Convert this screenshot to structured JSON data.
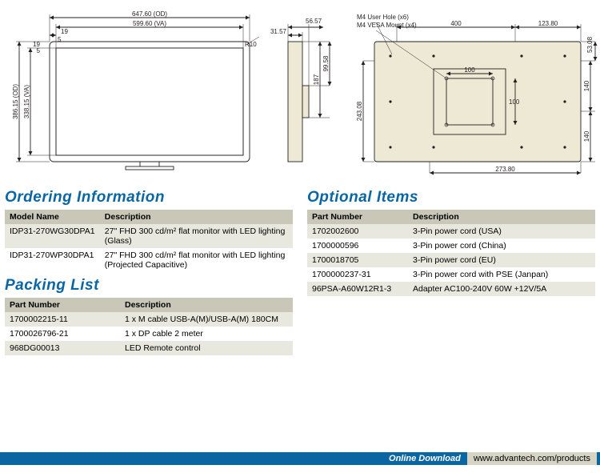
{
  "colors": {
    "accent": "#0966a3",
    "header_row": "#c9c7b7",
    "row_alt": "#e9e8de",
    "row_base": "#ffffff",
    "panel_fill": "#eee9d5",
    "line": "#231f20",
    "footer_url_bg": "#d6d4c5"
  },
  "sections": {
    "ordering": "Ordering Information",
    "packing": "Packing List",
    "optional": "Optional Items"
  },
  "ordering": {
    "columns": [
      "Model Name",
      "Description"
    ],
    "rows": [
      [
        "IDP31-270WG30DPA1",
        "27\" FHD 300 cd/m² flat monitor with LED lighting (Glass)"
      ],
      [
        "IDP31-270WP30DPA1",
        "27\" FHD 300 cd/m² flat monitor with LED lighting (Projected Capacitive)"
      ]
    ]
  },
  "packing": {
    "columns": [
      "Part Number",
      "Description"
    ],
    "rows": [
      [
        "1700002215-11",
        "1 x M cable USB-A(M)/USB-A(M) 180CM"
      ],
      [
        "1700026796-21",
        "1 x DP cable 2 meter"
      ],
      [
        "968DG00013",
        "LED Remote control"
      ]
    ]
  },
  "optional": {
    "columns": [
      "Part Number",
      "Description"
    ],
    "rows": [
      [
        "1702002600",
        "3-Pin power cord (USA)"
      ],
      [
        "1700000596",
        "3-Pin power cord (China)"
      ],
      [
        "1700018705",
        "3-Pin power cord (EU)"
      ],
      [
        "1700000237-31",
        "3-Pin power cord with PSE (Janpan)"
      ],
      [
        "96PSA-A60W12R1-3",
        "Adapter AC100-240V 60W +12V/5A"
      ]
    ]
  },
  "footer": {
    "label": "Online Download",
    "url": "www.advantech.com/products"
  },
  "diagram": {
    "front": {
      "od_w": "647.60 (OD)",
      "va_w": "599.60 (VA)",
      "od_h": "386.15 (OD)",
      "va_h": "338.15 (VA)",
      "bezel_top": "19",
      "bezel_left": "19",
      "inner_top": "5",
      "inner_left": "5",
      "radius": "R10"
    },
    "side": {
      "depth_top": "56.57",
      "depth_conn": "31.57",
      "h_upper": "99.58",
      "h_total": "187"
    },
    "rear": {
      "w_vesa_area": "400",
      "w_right": "123.80",
      "h_top_margin": "53.08",
      "h_upper": "140",
      "h_lower": "140",
      "h_mid": "243.08",
      "w_btm": "273.80",
      "vesa_100a": "100",
      "vesa_100b": "100",
      "note1": "M4 User Hole (x6)",
      "note2": "M4 VESA Mount (x4)"
    },
    "style": {
      "dim_font": 8,
      "stroke": 0.9
    }
  }
}
